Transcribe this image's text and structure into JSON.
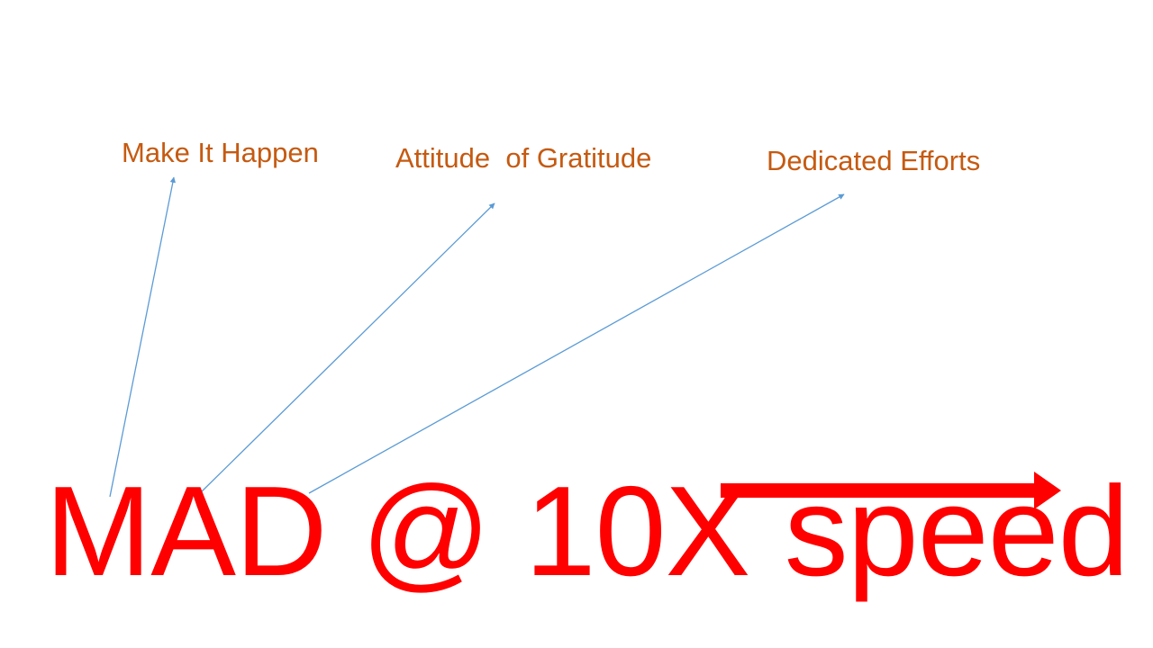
{
  "labels": {
    "make_it_happen": "Make It Happen",
    "attitude_of_gratitude": "Attitude  of Gratitude",
    "dedicated_efforts": "Dedicated Efforts"
  },
  "headline": {
    "text": "MAD @ 10X speed"
  },
  "colors": {
    "label_text": "#c55a11",
    "headline_text": "#ff0000",
    "connector": "#5b9bd5",
    "speed_arrow": "#ff0000",
    "background": "#ffffff"
  }
}
